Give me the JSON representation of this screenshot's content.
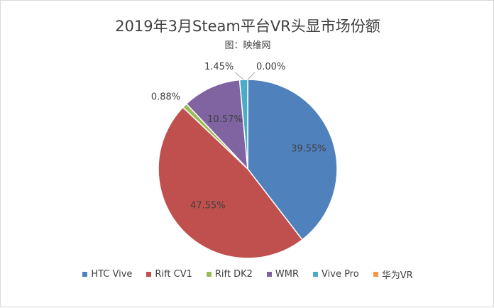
{
  "chart_data": {
    "type": "pie",
    "title": "2019年3月Steam平台VR头显市场份额",
    "subtitle": "图：映维网",
    "categories": [
      "HTC Vive",
      "Rift CV1",
      "Rift DK2",
      "WMR",
      "Vive Pro",
      "华为VR"
    ],
    "values": [
      39.55,
      47.55,
      0.88,
      10.57,
      1.45,
      0.0
    ],
    "value_labels": [
      "39.55%",
      "47.55%",
      "0.88%",
      "10.57%",
      "1.45%",
      "0.00%"
    ],
    "colors": [
      "#4f81bd",
      "#c0504d",
      "#9bbb59",
      "#8064a2",
      "#4bacc6",
      "#f79646"
    ],
    "legend_position": "bottom",
    "unit": "%"
  }
}
